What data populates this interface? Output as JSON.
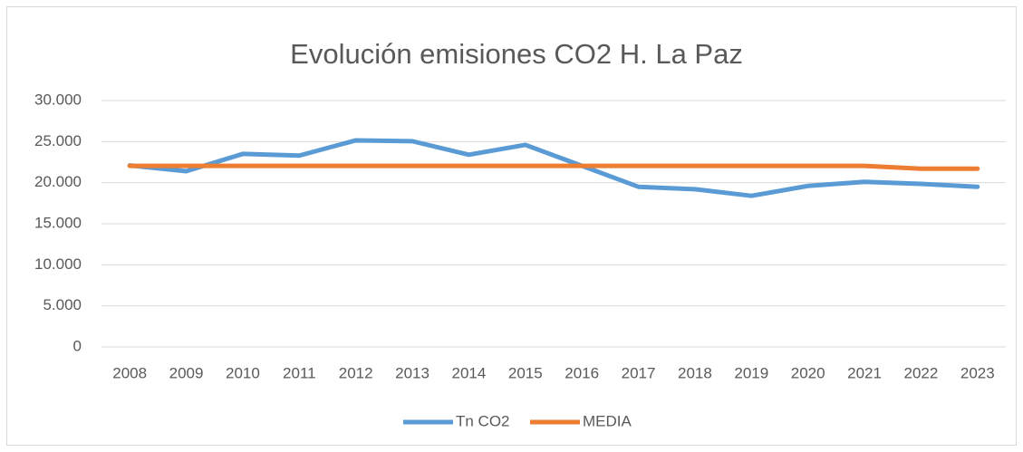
{
  "chart_data": {
    "type": "line",
    "title": "Evolución emisiones CO2 H. La Paz",
    "categories": [
      "2008",
      "2009",
      "2010",
      "2011",
      "2012",
      "2013",
      "2014",
      "2015",
      "2016",
      "2017",
      "2018",
      "2019",
      "2020",
      "2021",
      "2022",
      "2023"
    ],
    "series": [
      {
        "name": "Tn CO2",
        "color": "#5b9bd5",
        "values": [
          22100,
          21400,
          23500,
          23300,
          25150,
          25050,
          23400,
          24600,
          22050,
          19500,
          19200,
          18400,
          19600,
          20100,
          19850,
          19500
        ]
      },
      {
        "name": "MEDIA",
        "color": "#ed7d31",
        "values": [
          22050,
          22050,
          22050,
          22050,
          22050,
          22050,
          22050,
          22050,
          22050,
          22050,
          22050,
          22050,
          22050,
          22050,
          21700,
          21700
        ]
      }
    ],
    "ylim": [
      0,
      30000
    ],
    "yticks": [
      0,
      {
        "value": 5000,
        "label": "5.000"
      },
      {
        "value": 10000,
        "label": "10.000"
      },
      {
        "value": 15000,
        "label": "15.000"
      },
      {
        "value": 20000,
        "label": "20.000"
      },
      {
        "value": 25000,
        "label": "25.000"
      },
      {
        "value": 30000,
        "label": "30.000"
      }
    ],
    "grid": true,
    "legend": "bottom"
  }
}
